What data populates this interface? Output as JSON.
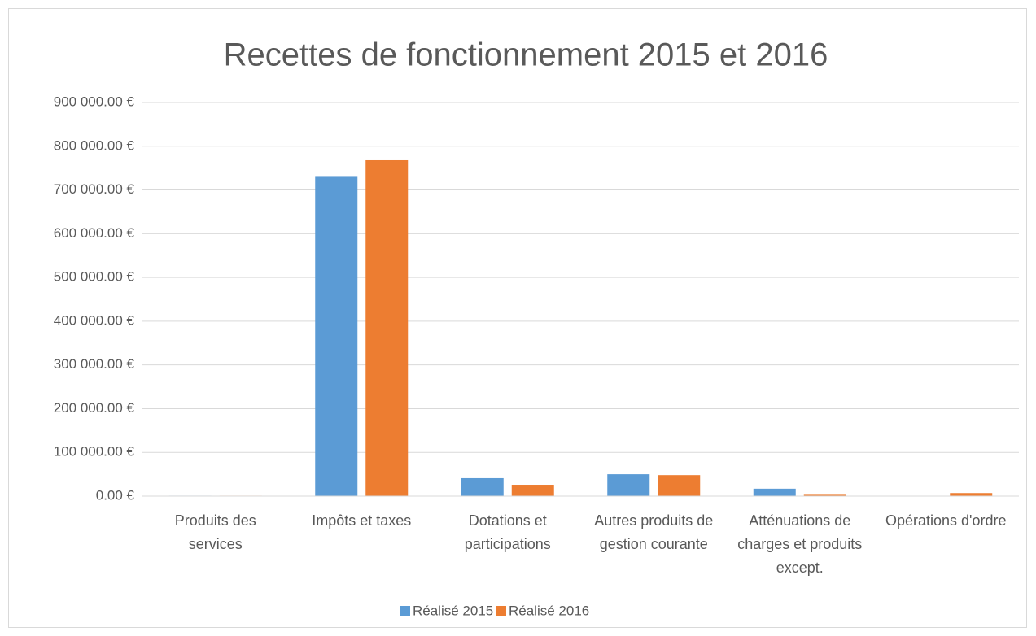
{
  "chart_data": {
    "type": "bar",
    "title": "Recettes de fonctionnement 2015 et 2016",
    "categories": [
      "Produits des services",
      "Impôts et taxes",
      "Dotations et participations",
      "Autres produits de gestion courante",
      "Atténuations de charges et produits except.",
      "Opérations d'ordre"
    ],
    "series": [
      {
        "name": "Réalisé 2015",
        "color": "#5b9bd5",
        "values": [
          1000,
          730000,
          41000,
          50000,
          17000,
          0
        ]
      },
      {
        "name": "Réalisé 2016",
        "color": "#ed7d31",
        "values": [
          1000,
          768000,
          26000,
          48000,
          3000,
          7000
        ]
      }
    ],
    "ylim": [
      0,
      900000
    ],
    "yticks": [
      {
        "value": 0,
        "label": "0.00 €"
      },
      {
        "value": 100000,
        "label": "100 000.00 €"
      },
      {
        "value": 200000,
        "label": "200 000.00 €"
      },
      {
        "value": 300000,
        "label": "300 000.00 €"
      },
      {
        "value": 400000,
        "label": "400 000.00 €"
      },
      {
        "value": 500000,
        "label": "500 000.00 €"
      },
      {
        "value": 600000,
        "label": "600 000.00 €"
      },
      {
        "value": 700000,
        "label": "700 000.00 €"
      },
      {
        "value": 800000,
        "label": "800 000.00 €"
      },
      {
        "value": 900000,
        "label": "900 000.00 €"
      }
    ],
    "grid": true,
    "legend": "bottom"
  }
}
